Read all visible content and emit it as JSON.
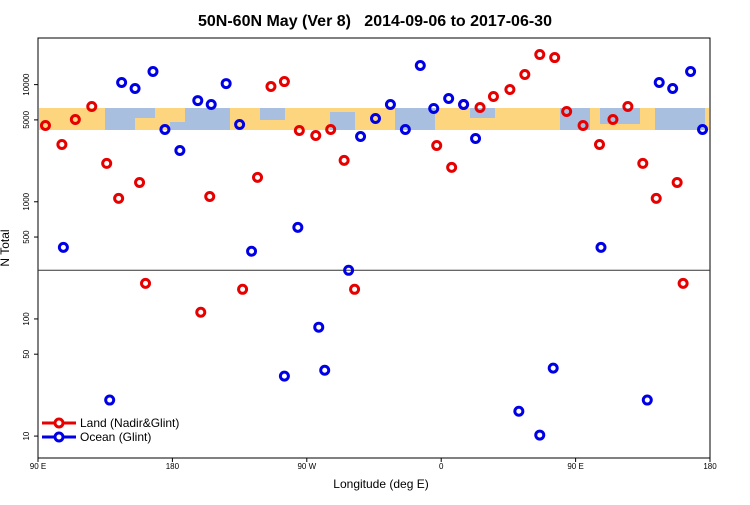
{
  "chart_data": {
    "type": "scatter",
    "title": "50N-60N May (Ver 8)   2014-09-06 to 2017-06-30",
    "xlabel": "Longitude (deg E)",
    "ylabel": "N Total",
    "xlim": [
      90,
      540
    ],
    "ylim": [
      6.5,
      25000
    ],
    "log_y": true,
    "xticks": [
      {
        "value": 90,
        "label": "90 E"
      },
      180,
      {
        "value": 270,
        "label": "90 W"
      },
      {
        "value": 360,
        "label": "0"
      },
      {
        "value": 450,
        "label": "90 E"
      },
      {
        "value": 540,
        "label": "180"
      }
    ],
    "yticks": [
      10,
      50,
      100,
      500,
      1000,
      5000,
      10000
    ],
    "hline": 260,
    "legend": "lower left",
    "series": [
      {
        "name": "Land (Nadir&Glint)",
        "color": "#e60000",
        "x": [
          95,
          106,
          115,
          126,
          136,
          144,
          158,
          162,
          199,
          205,
          227,
          237,
          246,
          255,
          265,
          276,
          286,
          295,
          302,
          357,
          367,
          375,
          386,
          395,
          406,
          416,
          426,
          436,
          444,
          455,
          466,
          475,
          485,
          495,
          504,
          518,
          522
        ],
        "values": [
          4480,
          3085,
          5040,
          6500,
          2125,
          1070,
          1460,
          201,
          114,
          1110,
          179,
          1615,
          9630,
          10620,
          4060,
          3680,
          4140,
          2255,
          179,
          3025,
          1965,
          6770,
          6380,
          7920,
          9080,
          12190,
          18060,
          17020,
          5900,
          4480,
          3085,
          5040,
          6500,
          2125,
          1070,
          1460,
          201
        ]
      },
      {
        "name": "Ocean (Glint)",
        "color": "#0000e6",
        "x": [
          107,
          138,
          146,
          155,
          167,
          175,
          185,
          197,
          206,
          216,
          225,
          233,
          255,
          264,
          278,
          282,
          298,
          306,
          316,
          326,
          336,
          346,
          355,
          365,
          375,
          383,
          412,
          426,
          435,
          467,
          498,
          506,
          515,
          527,
          535
        ],
        "values": [
          408,
          20.3,
          10420,
          9270,
          12940,
          4140,
          2740,
          7310,
          6770,
          10210,
          4570,
          378,
          32.5,
          605,
          85,
          36.5,
          260,
          3610,
          5140,
          6770,
          4140,
          14550,
          6260,
          7610,
          6770,
          3470,
          16.3,
          10.2,
          38,
          408,
          20.3,
          10420,
          9270,
          12940,
          4140
        ]
      }
    ]
  }
}
